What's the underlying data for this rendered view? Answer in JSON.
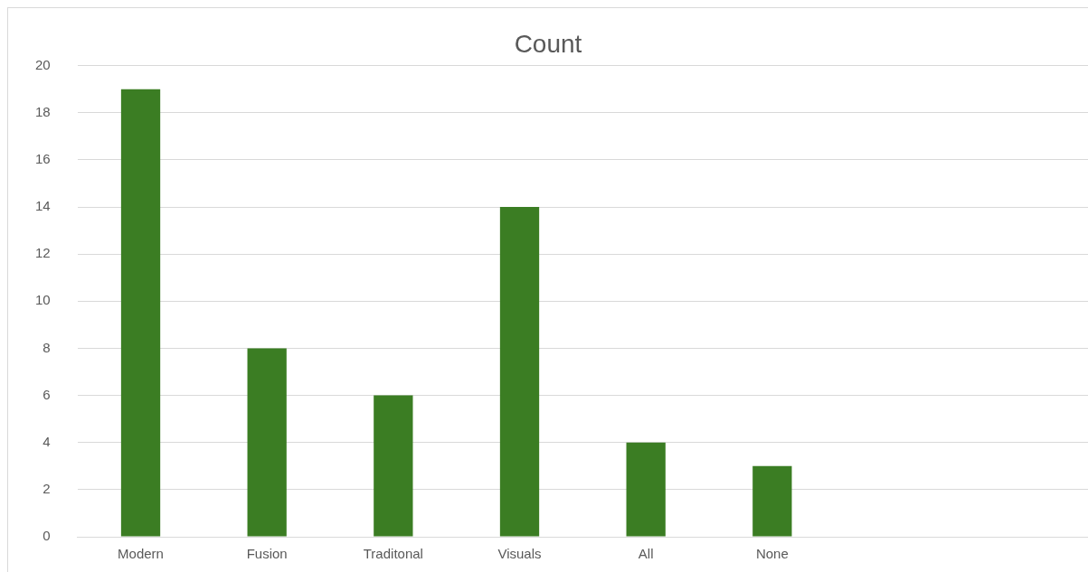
{
  "chart_data": {
    "type": "bar",
    "title": "Count",
    "categories": [
      "Modern",
      "Fusion",
      "Traditonal",
      "Visuals",
      "All",
      "None",
      null,
      null
    ],
    "values": [
      19,
      8,
      6,
      14,
      4,
      3,
      null,
      null
    ],
    "color": "#3b7d23",
    "ylim": [
      0,
      20
    ],
    "yticks": [
      0,
      2,
      4,
      6,
      8,
      10,
      12,
      14,
      16,
      18,
      20
    ],
    "grid": "y",
    "legend": false
  }
}
